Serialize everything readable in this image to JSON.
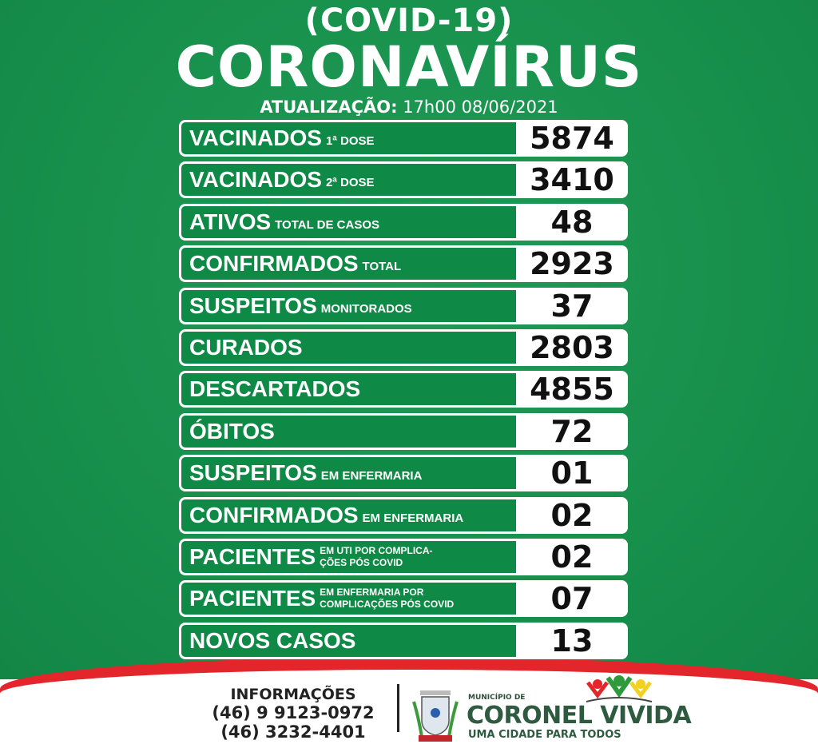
{
  "header": {
    "subtitle": "(COVID-19)",
    "title": "CORONAVÍRUS",
    "update_label": "ATUALIZAÇÃO:",
    "update_value": "17h00 08/06/2021"
  },
  "rows": [
    {
      "label": "VACINADOS",
      "sub": "1ª DOSE",
      "value": "5874"
    },
    {
      "label": "VACINADOS",
      "sub": "2ª DOSE",
      "value": "3410"
    },
    {
      "label": "ATIVOS",
      "sub": "TOTAL DE CASOS",
      "value": "48"
    },
    {
      "label": "CONFIRMADOS",
      "sub": "TOTAL",
      "value": "2923"
    },
    {
      "label": "SUSPEITOS",
      "sub": "MONITORADOS",
      "value": "37"
    },
    {
      "label": "CURADOS",
      "sub": "",
      "value": "2803"
    },
    {
      "label": "DESCARTADOS",
      "sub": "",
      "value": "4855"
    },
    {
      "label": "ÓBITOS",
      "sub": "",
      "value": "72"
    },
    {
      "label": "SUSPEITOS",
      "sub": "EM ENFERMARIA",
      "value": "01"
    },
    {
      "label": "CONFIRMADOS",
      "sub": "EM ENFERMARIA",
      "value": "02"
    },
    {
      "label": "PACIENTES",
      "sub": "EM UTI POR COMPLICA-",
      "sub_line2": "ÇÕES PÓS COVID",
      "value": "02"
    },
    {
      "label": "PACIENTES",
      "sub": "EM ENFERMARIA POR",
      "sub_line2": "COMPLICAÇÕES PÓS COVID",
      "value": "07"
    },
    {
      "label": "NOVOS CASOS",
      "sub": "",
      "value": "13"
    }
  ],
  "footer": {
    "info_title": "INFORMAÇÕES",
    "phone1": "(46) 9 9123-0972",
    "phone2": "(46) 3232-4401",
    "municipio": "MUNICÍPIO DE",
    "city": "CORONEL VIVIDA",
    "slogan": "UMA CIDADE PARA TODOS"
  },
  "colors": {
    "green": "#17904c",
    "red": "#e2262b",
    "white": "#ffffff"
  }
}
